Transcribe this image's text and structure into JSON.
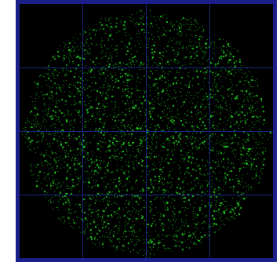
{
  "constellation": {
    "view": "constellation-diagram",
    "grid_divisions": 4,
    "colors": {
      "background": "#000000",
      "frame": "#1a1f8a",
      "grid": "#1c2a8c",
      "points": "#22d022"
    },
    "point_cloud_shape": "disc",
    "point_count": 9000
  }
}
